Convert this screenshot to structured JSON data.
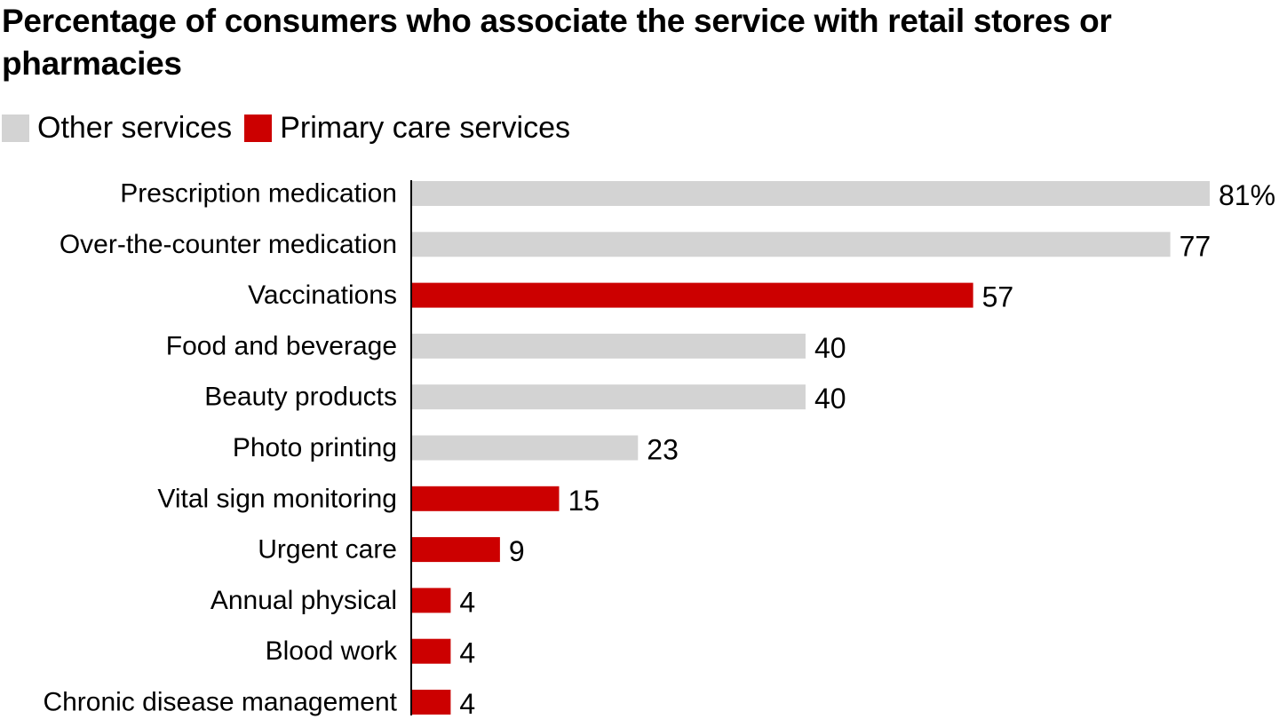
{
  "chart_data": {
    "type": "bar",
    "orientation": "horizontal",
    "title": "Percentage of consumers who associate the service with retail stores or pharmacies",
    "legend": [
      {
        "name": "Other services",
        "color": "#d3d3d3"
      },
      {
        "name": "Primary care services",
        "color": "#cc0000"
      }
    ],
    "legend_placement": "top-left",
    "grid": false,
    "xlim": [
      0,
      81
    ],
    "categories": [
      "Prescription medication",
      "Over-the-counter medication",
      "Vaccinations",
      "Food and beverage",
      "Beauty products",
      "Photo printing",
      "Vital sign monitoring",
      "Urgent care",
      "Annual physical",
      "Blood work",
      "Chronic disease management"
    ],
    "values": [
      81,
      77,
      57,
      40,
      40,
      23,
      15,
      9,
      4,
      4,
      4
    ],
    "value_labels": [
      "81%",
      "77",
      "57",
      "40",
      "40",
      "23",
      "15",
      "9",
      "4",
      "4",
      "4"
    ],
    "groups": [
      "Other services",
      "Other services",
      "Primary care services",
      "Other services",
      "Other services",
      "Other services",
      "Primary care services",
      "Primary care services",
      "Primary care services",
      "Primary care services",
      "Primary care services"
    ]
  }
}
